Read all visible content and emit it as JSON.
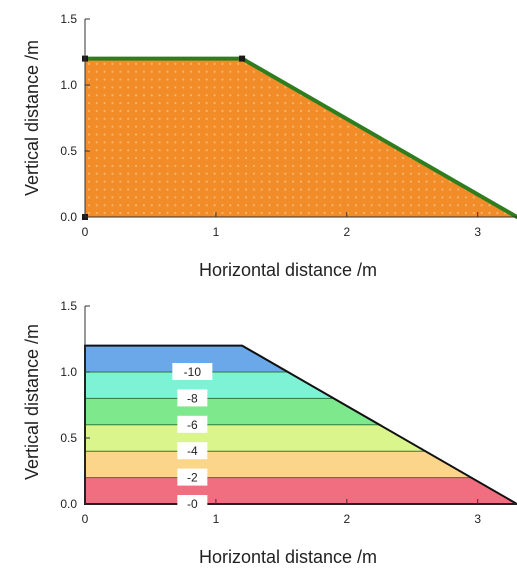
{
  "chart_data": [
    {
      "type": "area",
      "xlabel": "Horizontal distance /m",
      "ylabel": "Vertical distance /m",
      "xlim": [
        0,
        3.3
      ],
      "ylim": [
        0,
        1.5
      ],
      "x_ticks": [
        0,
        1,
        2,
        3
      ],
      "x_tick_labels": [
        "0",
        "1",
        "2",
        "3"
      ],
      "y_ticks": [
        0,
        0.5,
        1.0,
        1.5
      ],
      "y_tick_labels": [
        "0.0",
        "0.5",
        "1.0",
        "1.5"
      ],
      "grid": false,
      "fill_color": "#f28c28",
      "mesh_node_color": "#f6b56d",
      "boundary_color": "#2e7d1e",
      "corner_marker_color": "#1a1a1a",
      "geometry": {
        "outline": [
          [
            0,
            0
          ],
          [
            0,
            1.2
          ],
          [
            1.2,
            1.2
          ],
          [
            3.3,
            0
          ]
        ],
        "boundary_segments": [
          [
            [
              0,
              1.2
            ],
            [
              1.2,
              1.2
            ]
          ],
          [
            [
              1.2,
              1.2
            ],
            [
              3.3,
              0
            ]
          ]
        ],
        "corner_markers": [
          [
            0,
            1.2
          ],
          [
            1.2,
            1.2
          ],
          [
            0,
            0
          ]
        ]
      },
      "mesh_spacing": 0.06
    },
    {
      "type": "area",
      "xlabel": "Horizontal distance /m",
      "ylabel": "Vertical distance /m",
      "xlim": [
        0,
        3.3
      ],
      "ylim": [
        0,
        1.5
      ],
      "x_ticks": [
        0,
        1,
        2,
        3
      ],
      "x_tick_labels": [
        "0",
        "1",
        "2",
        "3"
      ],
      "y_ticks": [
        0,
        0.5,
        1.0,
        1.5
      ],
      "y_tick_labels": [
        "0.0",
        "0.5",
        "1.0",
        "1.5"
      ],
      "grid": false,
      "outline": [
        [
          0,
          0
        ],
        [
          0,
          1.2
        ],
        [
          1.2,
          1.2
        ],
        [
          3.3,
          0
        ]
      ],
      "outline_color": "#111111",
      "contour_line_color": "#2f7a3a",
      "bands": [
        {
          "y0": 0.0,
          "y1": 0.2,
          "color": "#f16e80"
        },
        {
          "y0": 0.2,
          "y1": 0.4,
          "color": "#fbd58a"
        },
        {
          "y0": 0.4,
          "y1": 0.6,
          "color": "#d9f58c"
        },
        {
          "y0": 0.6,
          "y1": 0.8,
          "color": "#7ee88c"
        },
        {
          "y0": 0.8,
          "y1": 1.0,
          "color": "#7ef2d4"
        },
        {
          "y0": 1.0,
          "y1": 1.2,
          "color": "#6aa8ea"
        }
      ],
      "contours": [
        {
          "level": "-10",
          "y": 1.0,
          "label": "-10",
          "label_x": 0.82
        },
        {
          "level": "-8",
          "y": 0.8,
          "label": "-8",
          "label_x": 0.82
        },
        {
          "level": "-6",
          "y": 0.6,
          "label": "-6",
          "label_x": 0.82
        },
        {
          "level": "-4",
          "y": 0.4,
          "label": "-4",
          "label_x": 0.82
        },
        {
          "level": "-2",
          "y": 0.2,
          "label": "-2",
          "label_x": 0.82
        },
        {
          "level": "0",
          "y": 0.0,
          "label": "-0",
          "label_x": 0.82
        }
      ]
    }
  ]
}
